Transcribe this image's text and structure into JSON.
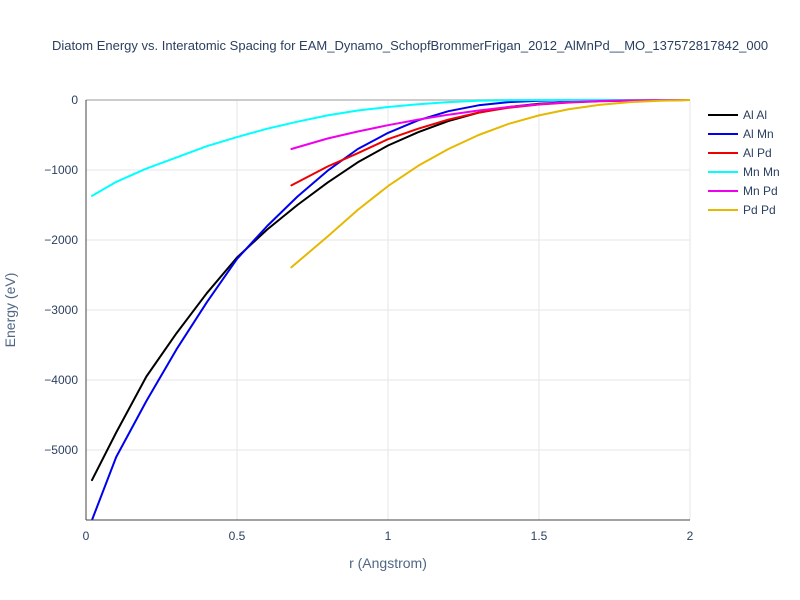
{
  "chart_data": {
    "type": "line",
    "title": "Diatom Energy vs. Interatomic Spacing for EAM_Dynamo_SchopfBrommerFrigan_2012_AlMnPd__MO_137572817842_000",
    "xlabel": "r (Angstrom)",
    "ylabel": "Energy (eV)",
    "xlim": [
      0,
      2
    ],
    "ylim": [
      -6000,
      0
    ],
    "x_ticks": [
      0,
      0.5,
      1,
      1.5,
      2
    ],
    "x_tick_labels": [
      "0",
      "0.5",
      "1",
      "1.5",
      "2"
    ],
    "y_ticks": [
      0,
      -1000,
      -2000,
      -3000,
      -4000,
      -5000
    ],
    "y_tick_labels": [
      "0",
      "−1000",
      "−2000",
      "−3000",
      "−4000",
      "−5000"
    ],
    "grid": true,
    "legend_position": "right",
    "series": [
      {
        "name": "Al Al",
        "color": "#000000",
        "x": [
          0.02,
          0.1,
          0.2,
          0.3,
          0.4,
          0.5,
          0.6,
          0.7,
          0.8,
          0.9,
          1.0,
          1.1,
          1.2,
          1.3,
          1.4,
          1.5,
          1.6,
          1.7,
          1.8,
          1.9,
          2.0
        ],
        "y": [
          -5430,
          -4750,
          -3950,
          -3330,
          -2760,
          -2250,
          -1850,
          -1500,
          -1180,
          -890,
          -650,
          -460,
          -300,
          -180,
          -100,
          -55,
          -30,
          -15,
          -7,
          -2,
          0
        ]
      },
      {
        "name": "Al Mn",
        "color": "#0000ee",
        "x": [
          0.02,
          0.1,
          0.2,
          0.3,
          0.4,
          0.5,
          0.6,
          0.7,
          0.8,
          0.9,
          1.0,
          1.1,
          1.2,
          1.3,
          1.4,
          1.5,
          1.6,
          1.7,
          1.8,
          1.9,
          2.0
        ],
        "y": [
          -6000,
          -5100,
          -4300,
          -3560,
          -2890,
          -2270,
          -1800,
          -1380,
          -1010,
          -700,
          -470,
          -290,
          -160,
          -75,
          -30,
          -10,
          -3,
          0,
          0,
          0,
          0
        ]
      },
      {
        "name": "Al Pd",
        "color": "#ee0000",
        "x": [
          0.68,
          0.8,
          0.9,
          1.0,
          1.1,
          1.2,
          1.3,
          1.4,
          1.5,
          1.6,
          1.7,
          1.8,
          1.9,
          2.0
        ],
        "y": [
          -1220,
          -950,
          -760,
          -560,
          -410,
          -280,
          -180,
          -110,
          -65,
          -35,
          -18,
          -8,
          -3,
          0
        ]
      },
      {
        "name": "Mn Mn",
        "color": "#00ffff",
        "x": [
          0.02,
          0.1,
          0.2,
          0.3,
          0.4,
          0.5,
          0.6,
          0.7,
          0.8,
          0.9,
          1.0,
          1.1,
          1.2,
          1.3,
          1.4,
          1.5,
          1.6,
          1.7,
          1.8,
          1.9,
          2.0
        ],
        "y": [
          -1370,
          -1170,
          -980,
          -820,
          -660,
          -530,
          -410,
          -310,
          -220,
          -150,
          -100,
          -60,
          -30,
          -12,
          -5,
          -2,
          0,
          0,
          0,
          0,
          0
        ]
      },
      {
        "name": "Mn Pd",
        "color": "#ee00ee",
        "x": [
          0.68,
          0.8,
          0.9,
          1.0,
          1.1,
          1.2,
          1.3,
          1.4,
          1.5,
          1.6,
          1.7,
          1.8,
          1.9,
          2.0
        ],
        "y": [
          -700,
          -550,
          -450,
          -360,
          -280,
          -210,
          -150,
          -100,
          -60,
          -30,
          -15,
          -6,
          -2,
          0
        ]
      },
      {
        "name": "Pd Pd",
        "color": "#e6b800",
        "x": [
          0.68,
          0.8,
          0.9,
          1.0,
          1.1,
          1.2,
          1.3,
          1.4,
          1.5,
          1.6,
          1.7,
          1.8,
          1.9,
          2.0
        ],
        "y": [
          -2390,
          -1950,
          -1570,
          -1230,
          -940,
          -700,
          -500,
          -340,
          -220,
          -130,
          -70,
          -30,
          -10,
          0
        ]
      }
    ]
  }
}
